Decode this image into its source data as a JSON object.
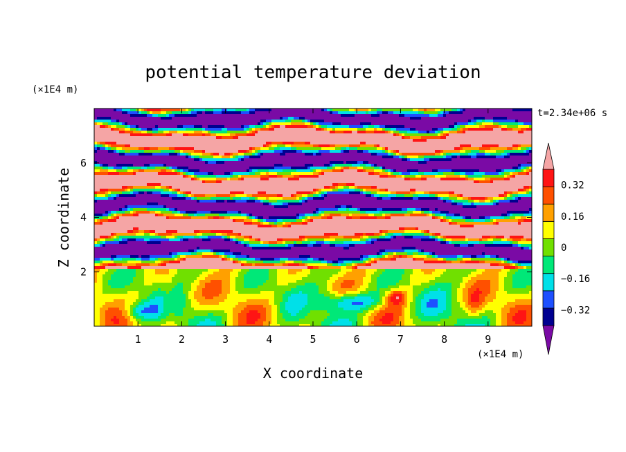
{
  "chart_data": {
    "type": "heatmap",
    "title": "potential temperature deviation",
    "xlabel": "X coordinate",
    "ylabel": "Z coordinate",
    "x_unit": "(×1E4 m)",
    "y_unit": "(×1E4 m)",
    "time_label": "t=2.34e+06 s",
    "xlim": [
      0,
      10
    ],
    "ylim": [
      0,
      8
    ],
    "x_ticks": [
      1,
      2,
      3,
      4,
      5,
      6,
      7,
      8,
      9
    ],
    "y_ticks": [
      2,
      4,
      6
    ],
    "colorbar": {
      "levels": [
        -0.4,
        -0.32,
        -0.24,
        -0.16,
        -0.08,
        0,
        0.08,
        0.16,
        0.24,
        0.32,
        0.4
      ],
      "tick_labels": [
        "0.32",
        "0.16",
        "0",
        "−0.16",
        "−0.32"
      ],
      "tick_values": [
        0.32,
        0.16,
        0,
        -0.16,
        -0.32
      ],
      "colors_low_to_high": [
        "#000090",
        "#1e50ff",
        "#00e0e8",
        "#00e878",
        "#70e000",
        "#ffff00",
        "#ffa000",
        "#ff5000",
        "#ff1414"
      ],
      "under_color": "#7a0aa5",
      "over_color": "#f5a5a5"
    }
  }
}
